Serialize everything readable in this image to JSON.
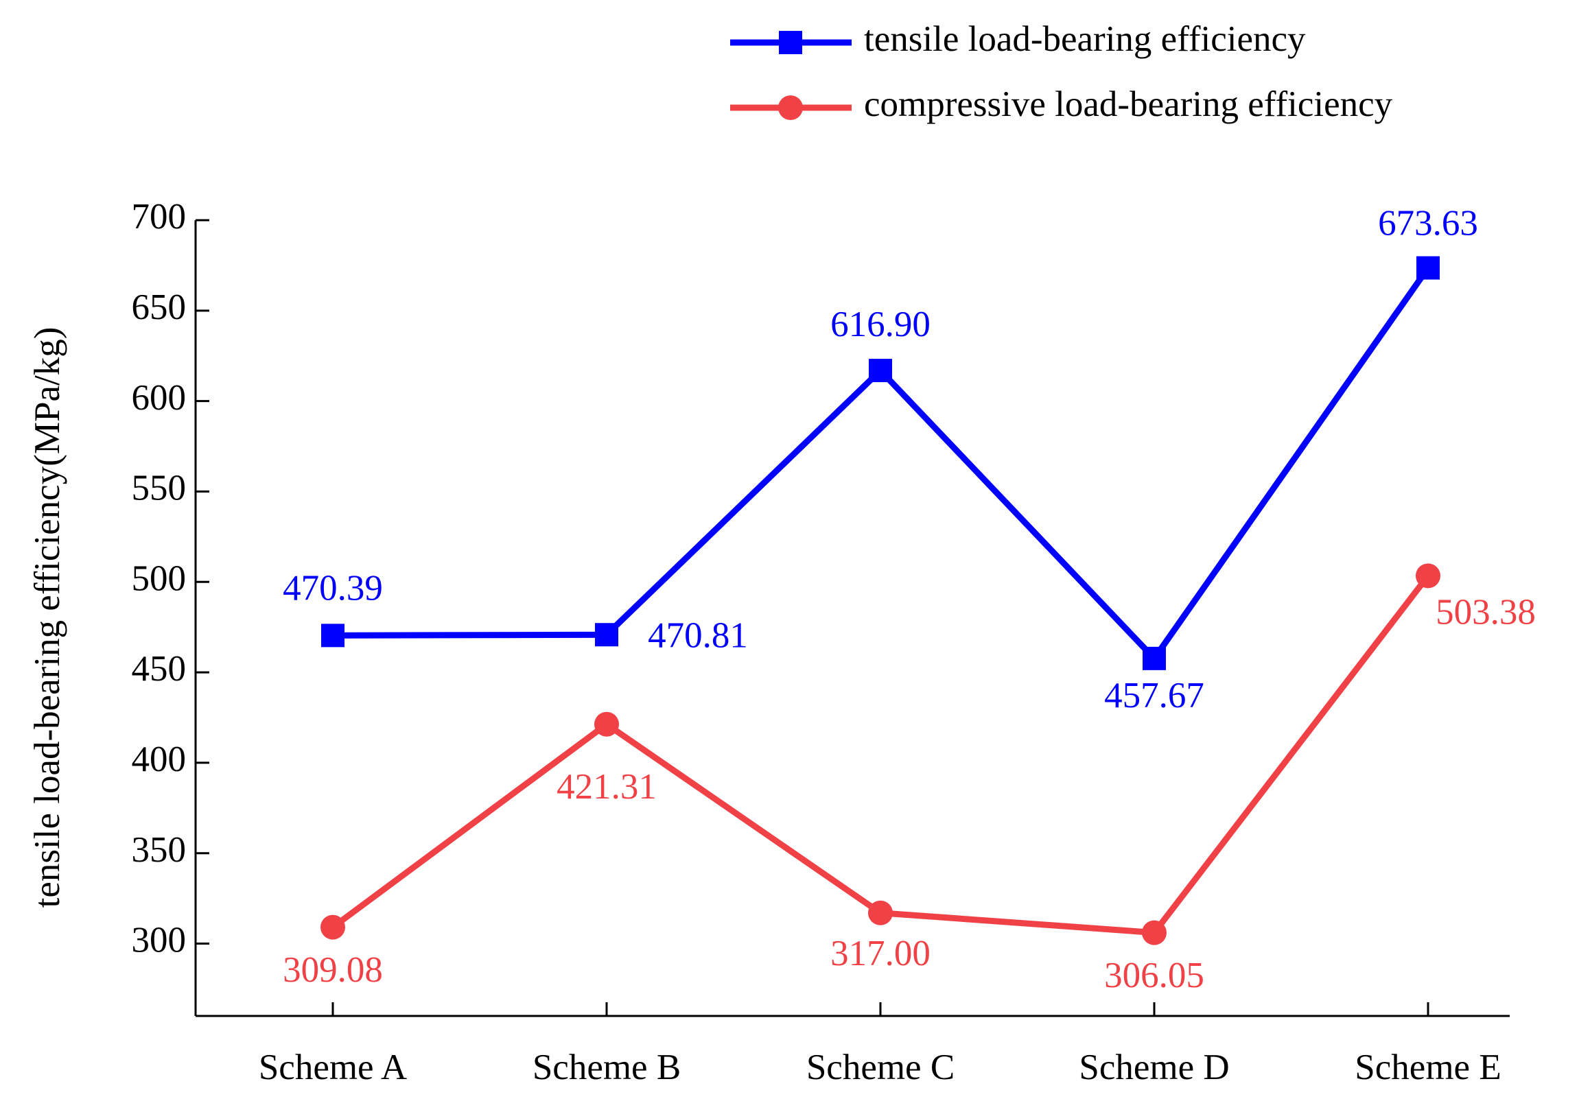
{
  "chart_data": {
    "type": "line",
    "y_label": "tensile load-bearing efficiency(MPa/kg)",
    "categories": [
      "Scheme A",
      "Scheme B",
      "Scheme C",
      "Scheme D",
      "Scheme E"
    ],
    "series": [
      {
        "name": "tensile load-bearing efficiency",
        "color": "#0000ff",
        "marker": "square",
        "values": [
          470.39,
          470.81,
          616.9,
          457.67,
          673.63
        ],
        "value_labels": [
          "470.39",
          "470.81",
          "616.90",
          "457.67",
          "673.63"
        ]
      },
      {
        "name": "compressive load-bearing efficiency",
        "color": "#ef4146",
        "marker": "circle",
        "values": [
          309.08,
          421.31,
          317,
          306.05,
          503.38
        ],
        "value_labels": [
          "309.08",
          "421.31",
          "317.00",
          "306.05",
          "503.38"
        ]
      }
    ],
    "ylim": [
      260,
      700
    ],
    "yticks": [
      300,
      350,
      400,
      450,
      500,
      550,
      600,
      650,
      700
    ],
    "grid": false,
    "legend": "top-right"
  }
}
